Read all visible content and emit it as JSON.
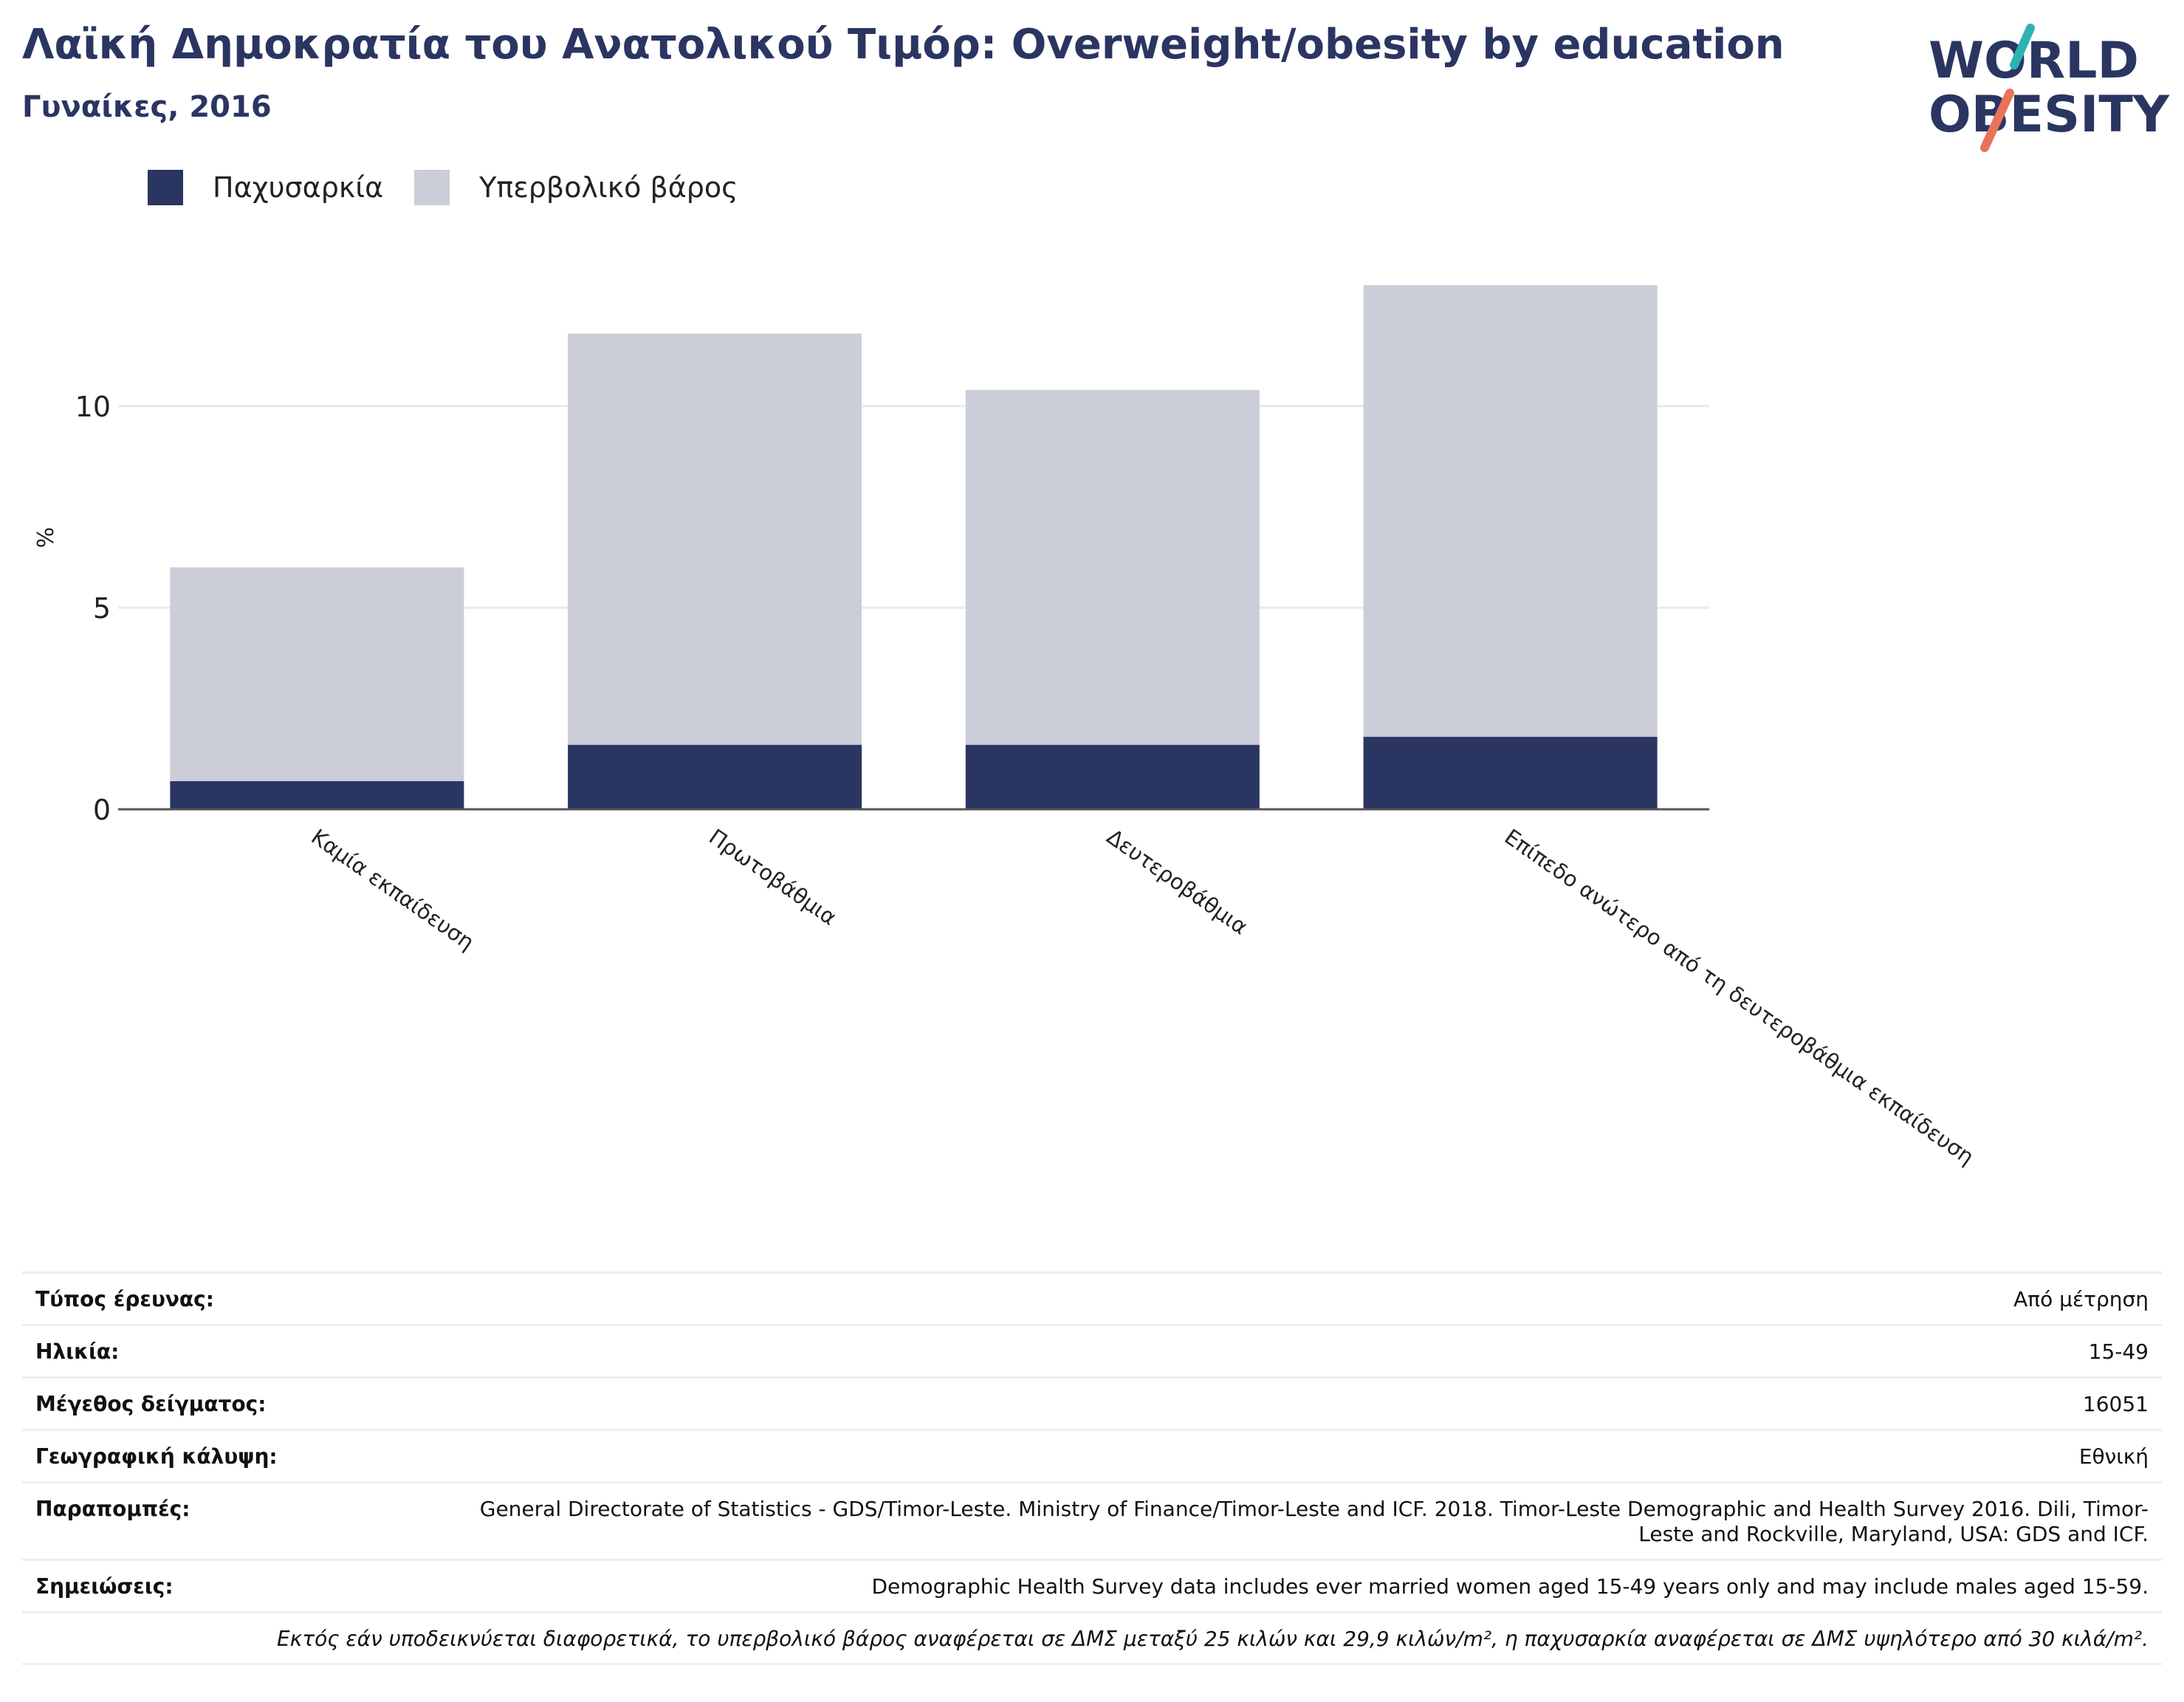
{
  "title": "Λαϊκή Δημοκρατία του Ανατολικού Τιμόρ: Overweight/obesity by education",
  "subtitle": "Γυναίκες, 2016",
  "logo": {
    "line1": "WORLD",
    "line2": "OBESITY"
  },
  "colors": {
    "obesity": "#2b3562",
    "overweight": "#cbcdd8",
    "axis": "#555555",
    "grid": "#e8e8ee"
  },
  "chart_data": {
    "type": "bar",
    "stacked": true,
    "ylabel": "%",
    "ylim": [
      0,
      13.5
    ],
    "yticks": [
      0,
      5,
      10
    ],
    "categories": [
      "Καμία εκπαίδευση",
      "Πρωτοβάθμια",
      "Δευτεροβάθμια",
      "Επίπεδο ανώτερο από τη δευτεροβάθμια εκπαίδευση"
    ],
    "series": [
      {
        "name": "Παχυσαρκία",
        "values": [
          0.7,
          1.6,
          1.6,
          1.8
        ]
      },
      {
        "name": "Υπερβολικό βάρος",
        "values": [
          5.3,
          10.2,
          8.8,
          11.2
        ]
      }
    ],
    "legend": "top-left",
    "grid": true
  },
  "meta": [
    {
      "key": "Τύπος έρευνας:",
      "value": "Από μέτρηση"
    },
    {
      "key": "Ηλικία:",
      "value": "15-49"
    },
    {
      "key": "Μέγεθος δείγματος:",
      "value": "16051"
    },
    {
      "key": "Γεωγραφική κάλυψη:",
      "value": "Εθνική"
    },
    {
      "key": "Παραπομπές:",
      "value": "General Directorate of Statistics - GDS/Timor-Leste. Ministry of Finance/Timor-Leste and ICF. 2018. Timor-Leste Demographic and Health Survey 2016. Dili, Timor-Leste and Rockville, Maryland, USA: GDS and ICF."
    },
    {
      "key": "Σημειώσεις:",
      "value": "Demographic Health Survey data includes ever married women aged 15-49 years only and may include males aged 15-59."
    }
  ],
  "footnote": "Εκτός εάν υποδεικνύεται διαφορετικά, το υπερβολικό βάρος αναφέρεται σε ΔΜΣ μεταξύ 25 κιλών και 29,9 κιλών/m², η παχυσαρκία αναφέρεται σε ΔΜΣ υψηλότερο από 30 κιλά/m²."
}
